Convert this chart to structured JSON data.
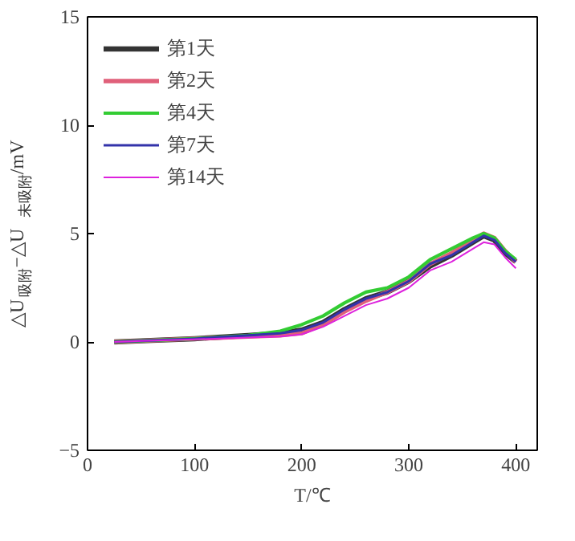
{
  "chart_data": {
    "type": "line",
    "xlabel": "T/℃",
    "ylabel": "△U$_{吸附}$−△U$_{未吸附}$/mV",
    "x": [
      25,
      50,
      100,
      150,
      180,
      200,
      220,
      240,
      260,
      280,
      300,
      320,
      340,
      360,
      370,
      380,
      390,
      400
    ],
    "series": [
      {
        "name": "第1天",
        "color": "#333333",
        "values": [
          0,
          0.05,
          0.15,
          0.3,
          0.4,
          0.55,
          0.9,
          1.5,
          2.0,
          2.3,
          2.8,
          3.5,
          4.0,
          4.6,
          4.9,
          4.7,
          4.1,
          3.7
        ]
      },
      {
        "name": "第2天",
        "color": "#e0607a",
        "values": [
          0,
          0.05,
          0.15,
          0.25,
          0.3,
          0.4,
          0.8,
          1.4,
          1.9,
          2.3,
          2.8,
          3.6,
          4.1,
          4.7,
          5.0,
          4.8,
          4.2,
          3.7
        ]
      },
      {
        "name": "第4天",
        "color": "#33cc33",
        "values": [
          0,
          0.05,
          0.15,
          0.3,
          0.5,
          0.8,
          1.2,
          1.8,
          2.3,
          2.5,
          3.0,
          3.8,
          4.3,
          4.8,
          5.0,
          4.8,
          4.2,
          3.8
        ]
      },
      {
        "name": "第7天",
        "color": "#3333aa",
        "values": [
          0,
          0.05,
          0.15,
          0.3,
          0.4,
          0.55,
          0.9,
          1.5,
          2.0,
          2.3,
          2.8,
          3.6,
          4.0,
          4.6,
          4.9,
          4.7,
          4.1,
          3.7
        ]
      },
      {
        "name": "第14天",
        "color": "#dd22dd",
        "values": [
          0,
          0.05,
          0.12,
          0.2,
          0.25,
          0.35,
          0.7,
          1.2,
          1.7,
          2.0,
          2.5,
          3.3,
          3.7,
          4.3,
          4.6,
          4.5,
          3.9,
          3.4
        ]
      }
    ],
    "xlim": [
      0,
      420
    ],
    "xticks": [
      0,
      100,
      200,
      300,
      400
    ],
    "ylim": [
      -5,
      15
    ],
    "yticks": [
      -5,
      0,
      5,
      10,
      15
    ],
    "grid": false,
    "legend": "top left",
    "line_style": "solid",
    "marker": "none"
  }
}
